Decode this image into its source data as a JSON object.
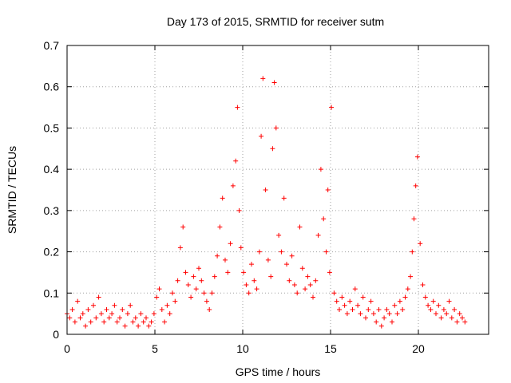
{
  "chart_data": {
    "type": "scatter",
    "title": "Day 173 of 2015, SRMTID for receiver sutm",
    "xlabel": "GPS time / hours",
    "ylabel": "SRMTID / TECUs",
    "xlim": [
      0,
      24
    ],
    "ylim": [
      0,
      0.7
    ],
    "xticks": [
      0,
      5,
      10,
      15,
      20
    ],
    "xtick_labels": [
      "0",
      "5",
      "10",
      "15",
      "20"
    ],
    "yticks": [
      0,
      0.1,
      0.2,
      0.3,
      0.4,
      0.5,
      0.6,
      0.7
    ],
    "ytick_labels": [
      "0",
      "0.1",
      "0.2",
      "0.3",
      "0.4",
      "0.5",
      "0.6",
      "0.7"
    ],
    "grid": true,
    "marker": "+",
    "color": "#ff0000",
    "series": [
      {
        "name": "SRMTID",
        "x": [
          0.0,
          0.15,
          0.3,
          0.45,
          0.6,
          0.75,
          0.9,
          1.05,
          1.2,
          1.35,
          1.5,
          1.65,
          1.8,
          1.95,
          2.1,
          2.25,
          2.4,
          2.55,
          2.7,
          2.85,
          3.0,
          3.15,
          3.3,
          3.45,
          3.6,
          3.75,
          3.9,
          4.05,
          4.2,
          4.35,
          4.5,
          4.65,
          4.8,
          4.95,
          5.1,
          5.25,
          5.4,
          5.55,
          5.7,
          5.85,
          6.0,
          6.15,
          6.3,
          6.45,
          6.6,
          6.75,
          6.9,
          7.05,
          7.2,
          7.35,
          7.5,
          7.65,
          7.8,
          7.95,
          8.1,
          8.25,
          8.4,
          8.55,
          8.7,
          8.85,
          9.0,
          9.15,
          9.3,
          9.45,
          9.6,
          9.7,
          9.8,
          9.9,
          10.05,
          10.2,
          10.35,
          10.5,
          10.65,
          10.8,
          10.95,
          11.05,
          11.15,
          11.3,
          11.45,
          11.6,
          11.7,
          11.8,
          11.9,
          12.05,
          12.2,
          12.35,
          12.5,
          12.65,
          12.8,
          12.95,
          13.1,
          13.25,
          13.4,
          13.55,
          13.7,
          13.85,
          14.0,
          14.15,
          14.3,
          14.45,
          14.6,
          14.75,
          14.85,
          14.95,
          15.05,
          15.2,
          15.35,
          15.5,
          15.65,
          15.8,
          15.95,
          16.1,
          16.25,
          16.4,
          16.55,
          16.7,
          16.85,
          17.0,
          17.15,
          17.3,
          17.45,
          17.6,
          17.75,
          17.9,
          18.05,
          18.2,
          18.35,
          18.5,
          18.65,
          18.8,
          18.95,
          19.1,
          19.25,
          19.4,
          19.55,
          19.65,
          19.75,
          19.85,
          19.95,
          20.1,
          20.25,
          20.4,
          20.55,
          20.7,
          20.85,
          21.0,
          21.15,
          21.3,
          21.45,
          21.6,
          21.75,
          21.9,
          22.05,
          22.2,
          22.35,
          22.5,
          22.65
        ],
        "y": [
          0.05,
          0.04,
          0.06,
          0.03,
          0.08,
          0.04,
          0.05,
          0.02,
          0.06,
          0.03,
          0.07,
          0.04,
          0.09,
          0.05,
          0.03,
          0.06,
          0.04,
          0.05,
          0.07,
          0.03,
          0.04,
          0.06,
          0.02,
          0.05,
          0.07,
          0.03,
          0.04,
          0.02,
          0.05,
          0.03,
          0.04,
          0.02,
          0.03,
          0.05,
          0.09,
          0.11,
          0.06,
          0.03,
          0.07,
          0.05,
          0.1,
          0.08,
          0.13,
          0.21,
          0.26,
          0.15,
          0.12,
          0.09,
          0.14,
          0.11,
          0.16,
          0.13,
          0.1,
          0.08,
          0.06,
          0.1,
          0.14,
          0.19,
          0.26,
          0.33,
          0.18,
          0.15,
          0.22,
          0.36,
          0.42,
          0.55,
          0.3,
          0.21,
          0.15,
          0.12,
          0.1,
          0.17,
          0.13,
          0.11,
          0.2,
          0.48,
          0.62,
          0.35,
          0.18,
          0.14,
          0.45,
          0.61,
          0.5,
          0.24,
          0.2,
          0.33,
          0.17,
          0.13,
          0.19,
          0.12,
          0.1,
          0.26,
          0.16,
          0.11,
          0.14,
          0.12,
          0.09,
          0.13,
          0.24,
          0.4,
          0.28,
          0.2,
          0.35,
          0.15,
          0.55,
          0.1,
          0.08,
          0.06,
          0.09,
          0.07,
          0.05,
          0.08,
          0.06,
          0.11,
          0.07,
          0.05,
          0.09,
          0.04,
          0.06,
          0.08,
          0.05,
          0.03,
          0.06,
          0.02,
          0.04,
          0.06,
          0.05,
          0.03,
          0.07,
          0.05,
          0.08,
          0.06,
          0.09,
          0.11,
          0.14,
          0.2,
          0.28,
          0.36,
          0.43,
          0.22,
          0.12,
          0.09,
          0.07,
          0.06,
          0.08,
          0.05,
          0.07,
          0.04,
          0.06,
          0.05,
          0.08,
          0.04,
          0.06,
          0.03,
          0.05,
          0.04,
          0.03
        ]
      }
    ]
  }
}
